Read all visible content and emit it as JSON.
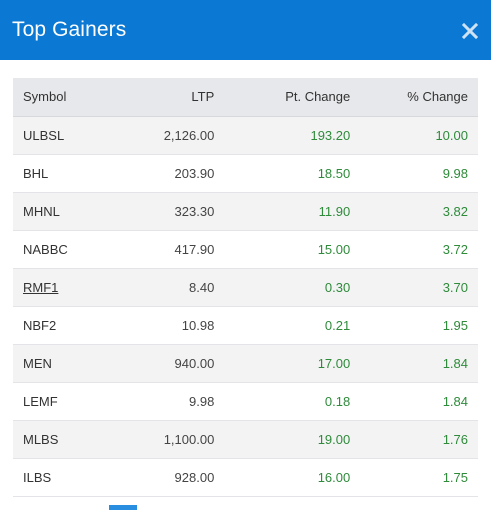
{
  "header": {
    "title": "Top Gainers",
    "close_icon": "close-icon"
  },
  "table": {
    "columns": [
      "Symbol",
      "LTP",
      "Pt. Change",
      "% Change"
    ],
    "rows": [
      {
        "symbol": "ULBSL",
        "ltp": "2,126.00",
        "pt_change": "193.20",
        "pct_change": "10.00"
      },
      {
        "symbol": "BHL",
        "ltp": "203.90",
        "pt_change": "18.50",
        "pct_change": "9.98"
      },
      {
        "symbol": "MHNL",
        "ltp": "323.30",
        "pt_change": "11.90",
        "pct_change": "3.82"
      },
      {
        "symbol": "NABBC",
        "ltp": "417.90",
        "pt_change": "15.00",
        "pct_change": "3.72"
      },
      {
        "symbol": "RMF1",
        "ltp": "8.40",
        "pt_change": "0.30",
        "pct_change": "3.70"
      },
      {
        "symbol": "NBF2",
        "ltp": "10.98",
        "pt_change": "0.21",
        "pct_change": "1.95"
      },
      {
        "symbol": "MEN",
        "ltp": "940.00",
        "pt_change": "17.00",
        "pct_change": "1.84"
      },
      {
        "symbol": "LEMF",
        "ltp": "9.98",
        "pt_change": "0.18",
        "pct_change": "1.84"
      },
      {
        "symbol": "MLBS",
        "ltp": "1,100.00",
        "pt_change": "19.00",
        "pct_change": "1.76"
      },
      {
        "symbol": "ILBS",
        "ltp": "928.00",
        "pt_change": "16.00",
        "pct_change": "1.75"
      }
    ]
  },
  "colors": {
    "header_bg": "#0b78d3",
    "gain_green": "#2e8b3a",
    "header_row_bg": "#e7e8eb",
    "stripe_bg": "#f3f3f4",
    "scroll_indicator": "#2a8ee0"
  }
}
